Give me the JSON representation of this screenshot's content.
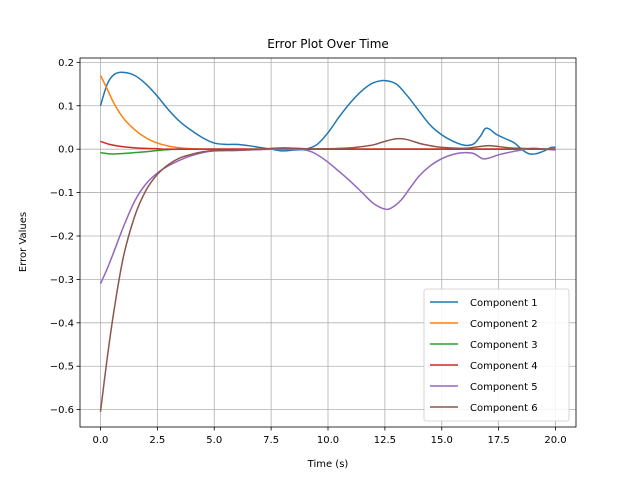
{
  "chart_data": {
    "type": "line",
    "title": "Error Plot Over Time",
    "xlabel": "Time (s)",
    "ylabel": "Error Values",
    "xlim": [
      -0.9,
      20.9
    ],
    "ylim": [
      -0.64,
      0.21
    ],
    "xticks": [
      0,
      2.5,
      5,
      7.5,
      10,
      12.5,
      15,
      17.5,
      20
    ],
    "xtick_labels": [
      "0.0",
      "2.5",
      "5.0",
      "7.5",
      "10.0",
      "12.5",
      "15.0",
      "17.5",
      "20.0"
    ],
    "yticks": [
      -0.6,
      -0.5,
      -0.4,
      -0.3,
      -0.2,
      -0.1,
      0,
      0.1,
      0.2
    ],
    "ytick_labels": [
      "−0.6",
      "−0.5",
      "−0.4",
      "−0.3",
      "−0.2",
      "−0.1",
      "0.0",
      "0.1",
      "0.2"
    ],
    "grid": true,
    "legend_position": "lower-right",
    "series": [
      {
        "name": "Component 1",
        "color": "#1f77b4",
        "points": [
          [
            0,
            0.1
          ],
          [
            0.3,
            0.15
          ],
          [
            0.6,
            0.172
          ],
          [
            1.0,
            0.177
          ],
          [
            1.5,
            0.17
          ],
          [
            2.0,
            0.15
          ],
          [
            2.5,
            0.122
          ],
          [
            3.0,
            0.09
          ],
          [
            3.5,
            0.063
          ],
          [
            4.0,
            0.043
          ],
          [
            4.5,
            0.026
          ],
          [
            5.0,
            0.014
          ],
          [
            5.5,
            0.011
          ],
          [
            6.0,
            0.011
          ],
          [
            6.5,
            0.008
          ],
          [
            7.0,
            0.004
          ],
          [
            7.5,
            0.0
          ],
          [
            8.0,
            -0.004
          ],
          [
            8.5,
            -0.002
          ],
          [
            9.0,
            0.0
          ],
          [
            9.5,
            0.01
          ],
          [
            10.0,
            0.038
          ],
          [
            10.5,
            0.075
          ],
          [
            11.0,
            0.108
          ],
          [
            11.5,
            0.135
          ],
          [
            12.0,
            0.153
          ],
          [
            12.5,
            0.158
          ],
          [
            13.0,
            0.15
          ],
          [
            13.5,
            0.122
          ],
          [
            14.0,
            0.088
          ],
          [
            14.5,
            0.055
          ],
          [
            15.0,
            0.033
          ],
          [
            15.5,
            0.018
          ],
          [
            16.0,
            0.009
          ],
          [
            16.4,
            0.012
          ],
          [
            16.7,
            0.03
          ],
          [
            16.9,
            0.047
          ],
          [
            17.1,
            0.046
          ],
          [
            17.4,
            0.034
          ],
          [
            17.8,
            0.024
          ],
          [
            18.2,
            0.014
          ],
          [
            18.5,
            0.0
          ],
          [
            18.8,
            -0.01
          ],
          [
            19.1,
            -0.011
          ],
          [
            19.5,
            -0.004
          ],
          [
            19.8,
            0.004
          ],
          [
            20.0,
            0.004
          ]
        ]
      },
      {
        "name": "Component 2",
        "color": "#ff7f0e",
        "points": [
          [
            0,
            0.17
          ],
          [
            0.3,
            0.138
          ],
          [
            0.6,
            0.105
          ],
          [
            1.0,
            0.072
          ],
          [
            1.5,
            0.045
          ],
          [
            2.0,
            0.026
          ],
          [
            2.5,
            0.014
          ],
          [
            3.0,
            0.007
          ],
          [
            3.5,
            0.003
          ],
          [
            4.0,
            0.001
          ],
          [
            5.0,
            0.0
          ],
          [
            10.0,
            0.0
          ],
          [
            15.0,
            0.0
          ],
          [
            20.0,
            0.0
          ]
        ]
      },
      {
        "name": "Component 3",
        "color": "#2ca02c",
        "points": [
          [
            0,
            -0.008
          ],
          [
            0.5,
            -0.011
          ],
          [
            1.0,
            -0.01
          ],
          [
            1.5,
            -0.008
          ],
          [
            2.0,
            -0.006
          ],
          [
            2.5,
            -0.003
          ],
          [
            3.0,
            -0.001
          ],
          [
            4.0,
            0.0
          ],
          [
            10.0,
            0.0
          ],
          [
            15.0,
            0.0
          ],
          [
            20.0,
            0.0
          ]
        ]
      },
      {
        "name": "Component 4",
        "color": "#d62728",
        "points": [
          [
            0,
            0.018
          ],
          [
            0.4,
            0.011
          ],
          [
            0.8,
            0.007
          ],
          [
            1.5,
            0.003
          ],
          [
            2.5,
            0.001
          ],
          [
            3.5,
            0.0
          ],
          [
            10.0,
            0.0
          ],
          [
            15.0,
            0.0
          ],
          [
            20.0,
            0.0
          ]
        ]
      },
      {
        "name": "Component 5",
        "color": "#9467bd",
        "points": [
          [
            0,
            -0.31
          ],
          [
            0.3,
            -0.275
          ],
          [
            0.6,
            -0.235
          ],
          [
            1.0,
            -0.18
          ],
          [
            1.5,
            -0.12
          ],
          [
            2.0,
            -0.08
          ],
          [
            2.5,
            -0.055
          ],
          [
            3.0,
            -0.038
          ],
          [
            3.5,
            -0.025
          ],
          [
            4.0,
            -0.015
          ],
          [
            4.5,
            -0.008
          ],
          [
            5.0,
            -0.004
          ],
          [
            6.0,
            -0.003
          ],
          [
            7.0,
            -0.001
          ],
          [
            8.0,
            0.0
          ],
          [
            9.0,
            -0.002
          ],
          [
            9.5,
            -0.012
          ],
          [
            10.0,
            -0.03
          ],
          [
            10.5,
            -0.052
          ],
          [
            11.0,
            -0.075
          ],
          [
            11.5,
            -0.1
          ],
          [
            12.0,
            -0.125
          ],
          [
            12.5,
            -0.138
          ],
          [
            12.8,
            -0.135
          ],
          [
            13.2,
            -0.118
          ],
          [
            13.6,
            -0.09
          ],
          [
            14.0,
            -0.062
          ],
          [
            14.5,
            -0.038
          ],
          [
            15.0,
            -0.022
          ],
          [
            15.5,
            -0.012
          ],
          [
            16.0,
            -0.008
          ],
          [
            16.4,
            -0.01
          ],
          [
            16.8,
            -0.022
          ],
          [
            17.1,
            -0.02
          ],
          [
            17.5,
            -0.013
          ],
          [
            18.0,
            -0.007
          ],
          [
            18.5,
            -0.002
          ],
          [
            19.0,
            0.002
          ],
          [
            19.5,
            0.0
          ],
          [
            20.0,
            -0.002
          ]
        ]
      },
      {
        "name": "Component 6",
        "color": "#8c564b",
        "points": [
          [
            0,
            -0.605
          ],
          [
            0.3,
            -0.48
          ],
          [
            0.6,
            -0.37
          ],
          [
            1.0,
            -0.25
          ],
          [
            1.5,
            -0.155
          ],
          [
            2.0,
            -0.095
          ],
          [
            2.5,
            -0.058
          ],
          [
            3.0,
            -0.035
          ],
          [
            3.5,
            -0.02
          ],
          [
            4.0,
            -0.012
          ],
          [
            4.5,
            -0.006
          ],
          [
            5.0,
            -0.003
          ],
          [
            6.0,
            -0.002
          ],
          [
            7.0,
            0.0
          ],
          [
            8.0,
            0.003
          ],
          [
            9.0,
            0.001
          ],
          [
            10.0,
            0.001
          ],
          [
            11.0,
            0.003
          ],
          [
            11.5,
            0.006
          ],
          [
            12.0,
            0.01
          ],
          [
            12.5,
            0.018
          ],
          [
            13.0,
            0.024
          ],
          [
            13.4,
            0.023
          ],
          [
            13.8,
            0.017
          ],
          [
            14.2,
            0.011
          ],
          [
            15.0,
            0.004
          ],
          [
            16.0,
            0.002
          ],
          [
            16.5,
            0.005
          ],
          [
            17.0,
            0.008
          ],
          [
            17.5,
            0.006
          ],
          [
            18.0,
            0.003
          ],
          [
            19.0,
            0.001
          ],
          [
            20.0,
            0.0
          ]
        ]
      }
    ]
  }
}
